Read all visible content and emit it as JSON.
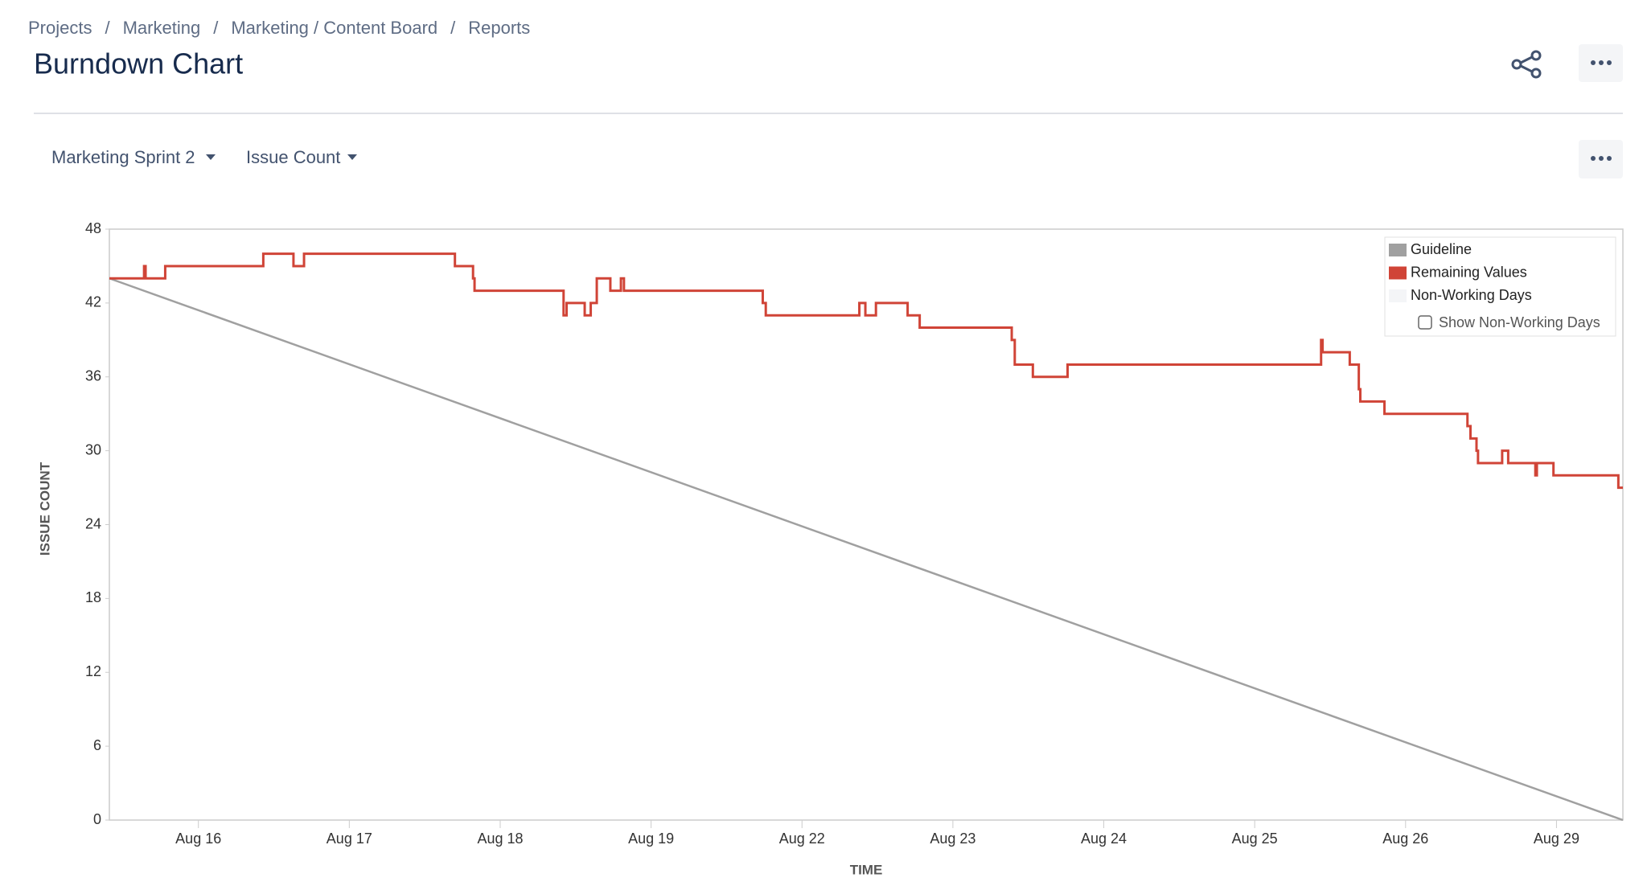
{
  "breadcrumb": [
    "Projects",
    "Marketing",
    "Marketing / Content Board",
    "Reports"
  ],
  "breadcrumb_separator": "/",
  "header": {
    "title": "Burndown Chart"
  },
  "controls": {
    "sprint": "Marketing Sprint 2",
    "metric": "Issue Count"
  },
  "chart_data": {
    "type": "line",
    "y_label": "ISSUE COUNT",
    "x_label": "TIME",
    "xlim": [
      0.41,
      10.44
    ],
    "xticks": [
      {
        "value": 1,
        "label": "Aug 16"
      },
      {
        "value": 2,
        "label": "Aug 17"
      },
      {
        "value": 3,
        "label": "Aug 18"
      },
      {
        "value": 4,
        "label": "Aug 19"
      },
      {
        "value": 5,
        "label": "Aug 22"
      },
      {
        "value": 6,
        "label": "Aug 23"
      },
      {
        "value": 7,
        "label": "Aug 24"
      },
      {
        "value": 8,
        "label": "Aug 25"
      },
      {
        "value": 9,
        "label": "Aug 26"
      },
      {
        "value": 10,
        "label": "Aug 29"
      }
    ],
    "ylim": [
      0,
      48
    ],
    "yticks": [
      0,
      6,
      12,
      18,
      24,
      30,
      36,
      42,
      48
    ],
    "grid": false,
    "legend_position": "upper right",
    "series": [
      {
        "name": "Guideline",
        "color": "#a0a0a0",
        "step": false,
        "x": [
          0.41,
          10.44
        ],
        "values": [
          44,
          0
        ]
      },
      {
        "name": "Remaining Values",
        "color": "#d04437",
        "step": true,
        "x": [
          0.41,
          0.64,
          0.65,
          0.78,
          1.43,
          1.63,
          1.7,
          2.7,
          2.82,
          2.83,
          3.42,
          3.44,
          3.56,
          3.6,
          3.64,
          3.73,
          3.8,
          3.82,
          4.74,
          4.76,
          5.38,
          5.42,
          5.49,
          5.7,
          5.78,
          6.39,
          6.41,
          6.53,
          6.76,
          8.44,
          8.45,
          8.63,
          8.69,
          8.7,
          8.86,
          9.41,
          9.43,
          9.47,
          9.48,
          9.64,
          9.68,
          9.86,
          9.87,
          9.98,
          10.41,
          10.44
        ],
        "values": [
          44,
          45,
          44,
          45,
          46,
          45,
          46,
          45,
          44,
          43,
          41,
          42,
          41,
          42,
          44,
          43,
          44,
          43,
          42,
          41,
          42,
          41,
          42,
          41,
          40,
          39,
          37,
          36,
          37,
          39,
          38,
          37,
          35,
          34,
          33,
          32,
          31,
          30,
          29,
          30,
          29,
          28,
          29,
          28,
          27,
          27
        ]
      }
    ],
    "non_working_days": {
      "name": "Non-Working Days",
      "color": "#f4f5f7"
    },
    "show_non_working_days": {
      "label": "Show Non-Working Days",
      "checked": false
    }
  }
}
